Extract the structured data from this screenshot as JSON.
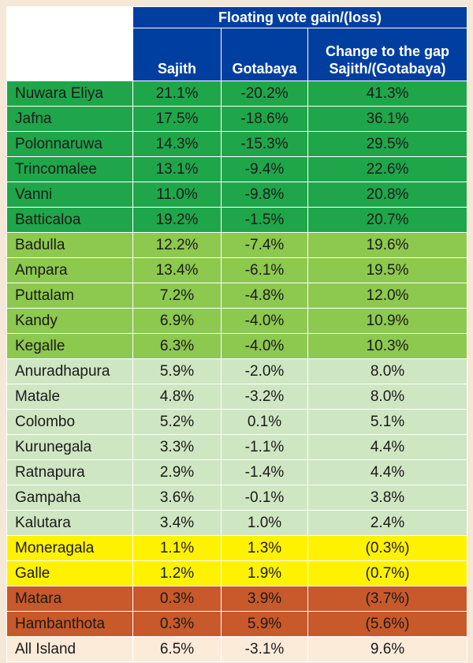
{
  "colors": {
    "header_blue": "#003fa0",
    "dark_green": "#1fa64a",
    "medium_green": "#8dc84f",
    "light_green": "#cfe6c2",
    "yellow": "#fff200",
    "orange": "#c8592a",
    "peach": "#fdebd9"
  },
  "chart_data": {
    "type": "table",
    "title": "Floating vote gain/(loss)",
    "columns": [
      "",
      "Sajith",
      "Gotabaya",
      "Change to the gap\nSajith/(Gotabaya)"
    ],
    "rows": [
      {
        "name": "Nuwara Eliya",
        "sajith": "21.1%",
        "gotabaya": "-20.2%",
        "gap": "41.3%",
        "tier": "dark_green"
      },
      {
        "name": "Jafna",
        "sajith": "17.5%",
        "gotabaya": "-18.6%",
        "gap": "36.1%",
        "tier": "dark_green"
      },
      {
        "name": "Polonnaruwa",
        "sajith": "14.3%",
        "gotabaya": "-15.3%",
        "gap": "29.5%",
        "tier": "dark_green"
      },
      {
        "name": "Trincomalee",
        "sajith": "13.1%",
        "gotabaya": "-9.4%",
        "gap": "22.6%",
        "tier": "dark_green"
      },
      {
        "name": "Vanni",
        "sajith": "11.0%",
        "gotabaya": "-9.8%",
        "gap": "20.8%",
        "tier": "dark_green"
      },
      {
        "name": "Batticaloa",
        "sajith": "19.2%",
        "gotabaya": "-1.5%",
        "gap": "20.7%",
        "tier": "dark_green"
      },
      {
        "name": "Badulla",
        "sajith": "12.2%",
        "gotabaya": "-7.4%",
        "gap": "19.6%",
        "tier": "medium_green"
      },
      {
        "name": "Ampara",
        "sajith": "13.4%",
        "gotabaya": "-6.1%",
        "gap": "19.5%",
        "tier": "medium_green"
      },
      {
        "name": "Puttalam",
        "sajith": "7.2%",
        "gotabaya": "-4.8%",
        "gap": "12.0%",
        "tier": "medium_green"
      },
      {
        "name": "Kandy",
        "sajith": "6.9%",
        "gotabaya": "-4.0%",
        "gap": "10.9%",
        "tier": "medium_green"
      },
      {
        "name": "Kegalle",
        "sajith": "6.3%",
        "gotabaya": "-4.0%",
        "gap": "10.3%",
        "tier": "medium_green"
      },
      {
        "name": "Anuradhapura",
        "sajith": "5.9%",
        "gotabaya": "-2.0%",
        "gap": "8.0%",
        "tier": "light_green"
      },
      {
        "name": "Matale",
        "sajith": "4.8%",
        "gotabaya": "-3.2%",
        "gap": "8.0%",
        "tier": "light_green"
      },
      {
        "name": "Colombo",
        "sajith": "5.2%",
        "gotabaya": "0.1%",
        "gap": "5.1%",
        "tier": "light_green"
      },
      {
        "name": "Kurunegala",
        "sajith": "3.3%",
        "gotabaya": "-1.1%",
        "gap": "4.4%",
        "tier": "light_green"
      },
      {
        "name": "Ratnapura",
        "sajith": "2.9%",
        "gotabaya": "-1.4%",
        "gap": "4.4%",
        "tier": "light_green"
      },
      {
        "name": "Gampaha",
        "sajith": "3.6%",
        "gotabaya": "-0.1%",
        "gap": "3.8%",
        "tier": "light_green"
      },
      {
        "name": "Kalutara",
        "sajith": "3.4%",
        "gotabaya": "1.0%",
        "gap": "2.4%",
        "tier": "light_green"
      },
      {
        "name": "Moneragala",
        "sajith": "1.1%",
        "gotabaya": "1.3%",
        "gap": "(0.3%)",
        "tier": "yellow"
      },
      {
        "name": "Galle",
        "sajith": "1.2%",
        "gotabaya": "1.9%",
        "gap": "(0.7%)",
        "tier": "yellow"
      },
      {
        "name": "Matara",
        "sajith": "0.3%",
        "gotabaya": "3.9%",
        "gap": "(3.7%)",
        "tier": "orange"
      },
      {
        "name": "Hambanthota",
        "sajith": "0.3%",
        "gotabaya": "5.9%",
        "gap": "(5.6%)",
        "tier": "orange"
      },
      {
        "name": "All Island",
        "sajith": "6.5%",
        "gotabaya": "-3.1%",
        "gap": "9.6%",
        "tier": "peach"
      }
    ]
  }
}
